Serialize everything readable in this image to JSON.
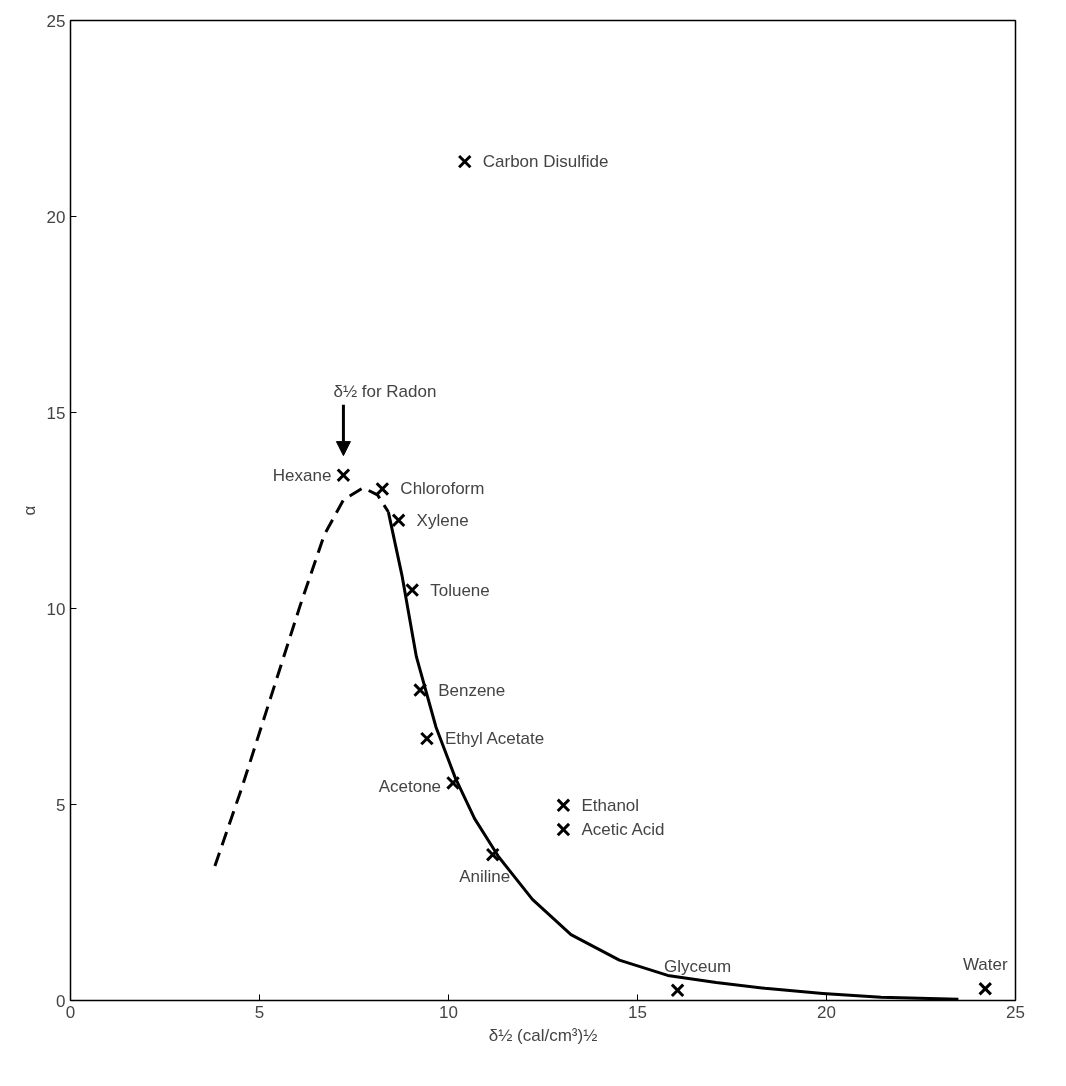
{
  "chart_data": {
    "type": "scatter",
    "xlabel": "δ½ (cal/cm³)½",
    "ylabel": "α",
    "xlim": [
      0,
      25
    ],
    "ylim": [
      0,
      25
    ],
    "xticks": [
      0,
      5,
      10,
      15,
      20,
      25
    ],
    "yticks": [
      0,
      5,
      10,
      15,
      20,
      25
    ],
    "grid": false,
    "series": [
      {
        "marker": "cross",
        "color": "#000000",
        "x": [
          10.43,
          7.22,
          8.25,
          8.68,
          9.04,
          9.25,
          9.43,
          10.12,
          13.04,
          13.04,
          11.17,
          16.06,
          24.2
        ],
        "values": [
          21.4,
          13.4,
          13.05,
          12.25,
          10.47,
          7.92,
          6.68,
          5.55,
          4.98,
          4.36,
          3.72,
          0.26,
          0.3
        ]
      },
      {
        "type": "line",
        "color": "#000000",
        "line_style": "solid",
        "x": [
          8.41,
          8.77,
          9.15,
          9.67,
          10.18,
          10.69,
          11.33,
          12.22,
          13.24,
          14.52,
          15.8,
          17.08,
          18.37,
          19.9,
          21.44,
          23.49
        ],
        "values": [
          12.46,
          10.84,
          8.77,
          6.97,
          5.68,
          4.64,
          3.66,
          2.58,
          1.68,
          1.03,
          0.64,
          0.46,
          0.31,
          0.18,
          0.08,
          0.03
        ]
      },
      {
        "type": "line",
        "color": "#000000",
        "line_style": "dashed",
        "x": [
          3.82,
          4.53,
          5.3,
          6.07,
          6.71,
          7.22,
          7.74,
          8.12,
          8.41
        ],
        "values": [
          3.43,
          5.42,
          7.74,
          10.06,
          11.87,
          12.77,
          13.08,
          12.9,
          12.46
        ]
      }
    ],
    "annotations": [
      {
        "text": "Carbon Disulfide",
        "x": 10.43,
        "y": 21.4
      },
      {
        "text": "Hexane",
        "x": 7.22,
        "y": 13.4
      },
      {
        "text": "Chloroform",
        "x": 8.25,
        "y": 13.05
      },
      {
        "text": "Xylene",
        "x": 8.68,
        "y": 12.25
      },
      {
        "text": "Toluene",
        "x": 9.04,
        "y": 10.47
      },
      {
        "text": "Benzene",
        "x": 9.25,
        "y": 7.92
      },
      {
        "text": "Ethyl Acetate",
        "x": 9.43,
        "y": 6.68
      },
      {
        "text": "Acetone",
        "x": 10.12,
        "y": 5.55
      },
      {
        "text": "Ethanol",
        "x": 13.04,
        "y": 4.98
      },
      {
        "text": "Acetic Acid",
        "x": 13.04,
        "y": 4.36
      },
      {
        "text": "Aniline",
        "x": 11.17,
        "y": 3.72
      },
      {
        "text": "Glyceum",
        "x": 16.06,
        "y": 0.26
      },
      {
        "text": "Water",
        "x": 24.2,
        "y": 0.3
      },
      "δ½ for Radon"
    ]
  }
}
